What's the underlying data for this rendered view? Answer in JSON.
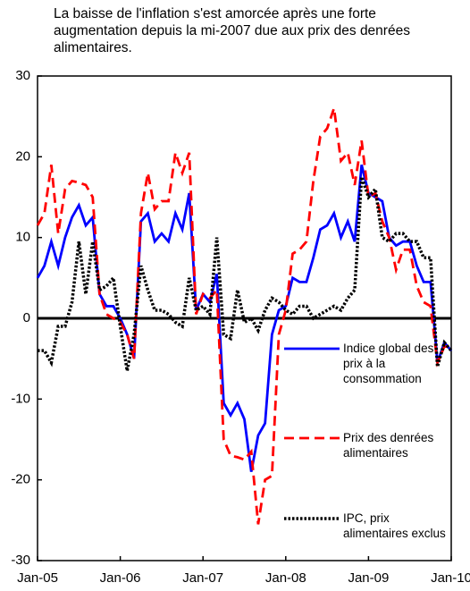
{
  "chart_data": {
    "type": "line",
    "title": "La baisse de l'inflation s'est amorcée après une forte augmentation depuis la mi-2007 due aux prix des denrées alimentaires.",
    "categories": [
      "Jan-05",
      null,
      null,
      null,
      null,
      null,
      null,
      null,
      null,
      null,
      null,
      null,
      "Jan-06",
      null,
      null,
      null,
      null,
      null,
      null,
      null,
      null,
      null,
      null,
      null,
      "Jan-07",
      null,
      null,
      null,
      null,
      null,
      null,
      null,
      null,
      null,
      null,
      null,
      "Jan-08",
      null,
      null,
      null,
      null,
      null,
      null,
      null,
      null,
      null,
      null,
      null,
      "Jan-09",
      null,
      null,
      null,
      null,
      null,
      null,
      null,
      null,
      null,
      null,
      null,
      "Jan-10"
    ],
    "ylim": [
      -30,
      30
    ],
    "yticks": [
      -30,
      -20,
      -10,
      0,
      10,
      20,
      30
    ],
    "series": [
      {
        "name": "Indice global des prix à la consommation",
        "color": "#0000ff",
        "dash": "solid",
        "values": [
          5,
          6.5,
          9.5,
          6.5,
          10,
          12.5,
          14,
          11.5,
          12.5,
          3,
          1.5,
          1.5,
          0,
          -2,
          -5,
          12,
          13,
          9.5,
          10.5,
          9.5,
          13,
          11,
          15.5,
          1,
          3,
          2,
          5.5,
          -10.5,
          -12,
          -10.5,
          -12.5,
          -19,
          -14.5,
          -13,
          -2,
          1,
          1.5,
          5,
          4.5,
          4.5,
          7.5,
          11,
          11.5,
          13,
          10,
          12,
          9.5,
          19,
          15.5,
          15,
          14.5,
          10,
          9,
          9.5,
          9.5,
          6.5,
          4.5,
          4.5,
          -5.5,
          -3,
          -4
        ]
      },
      {
        "name": "Prix des denrées alimentaires",
        "color": "#ff0000",
        "dash": "dashed",
        "values": [
          11.5,
          13,
          19,
          10.5,
          16,
          17,
          16.8,
          16.5,
          15,
          3,
          0.5,
          0,
          -0.5,
          -2,
          -5,
          13,
          18,
          13.5,
          14.5,
          14.5,
          20.5,
          18,
          20.5,
          0.5,
          3,
          2.5,
          3.5,
          -15,
          -17,
          -17.2,
          -17.5,
          -16.5,
          -25.5,
          -20,
          -19.5,
          -2,
          1,
          8,
          8.5,
          9.5,
          17,
          22.5,
          23.5,
          26,
          19.5,
          20.5,
          16.5,
          22,
          15,
          15.5,
          12,
          10,
          6,
          8.5,
          8.5,
          4,
          2,
          1.5,
          -5.5,
          -3.5,
          -3.5
        ]
      },
      {
        "name": "IPC, prix alimentaires exclus",
        "color": "#000000",
        "dash": "dotted",
        "values": [
          -4,
          -4,
          -5.5,
          -1,
          -1,
          2,
          9.5,
          3,
          9.5,
          3.5,
          4,
          5,
          -1,
          -6.5,
          -2,
          6.5,
          3.5,
          1,
          1,
          0.5,
          -0.5,
          -1,
          5,
          1,
          1.5,
          0.5,
          10,
          -2,
          -2.5,
          3.5,
          -0.5,
          0,
          -1.5,
          1,
          2.5,
          2,
          1,
          0.5,
          1.5,
          1.5,
          0,
          0.5,
          1,
          1.5,
          1,
          2.5,
          3.5,
          17.5,
          15,
          16,
          10,
          9.5,
          10.5,
          10.5,
          9.5,
          9.5,
          7.5,
          7.5,
          -6,
          -3,
          -4
        ]
      }
    ]
  }
}
